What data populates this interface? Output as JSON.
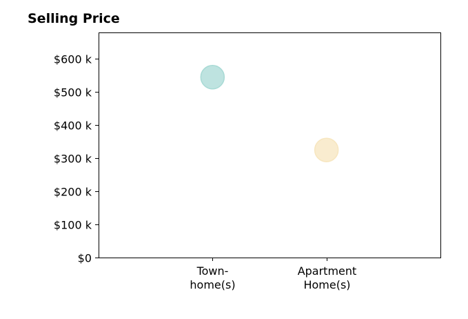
{
  "chart_data": {
    "type": "scatter",
    "title": "Selling Price",
    "xlabel": "",
    "ylabel": "",
    "categories": [
      [
        "Town-",
        "home(s)"
      ],
      [
        "Apartment",
        "Home(s)"
      ]
    ],
    "x_positions": [
      1,
      2
    ],
    "xlim": [
      0,
      3
    ],
    "ylim": [
      0,
      680000
    ],
    "yticks": [
      0,
      100000,
      200000,
      300000,
      400000,
      500000,
      600000
    ],
    "ytick_labels": [
      "$0",
      "$100 k",
      "$200 k",
      "$300 k",
      "$400 k",
      "$500 k",
      "$600 k"
    ],
    "grid": false,
    "points": [
      {
        "category": "Town-home(s)",
        "value": 545000,
        "color": "#a8dad5"
      },
      {
        "category": "Apartment Home(s)",
        "value": 325000,
        "color": "#f7e6bf"
      }
    ]
  }
}
